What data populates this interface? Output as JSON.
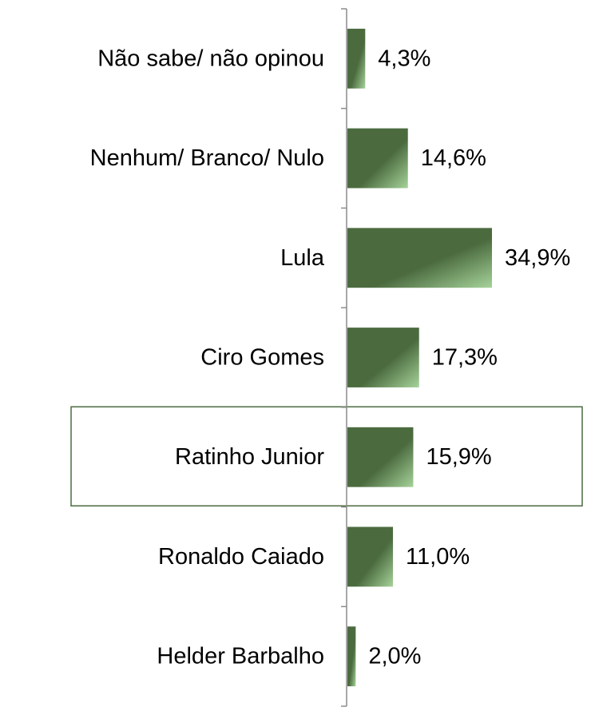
{
  "chart_data": {
    "type": "bar",
    "orientation": "horizontal",
    "title": "",
    "xlabel": "",
    "ylabel": "",
    "categories": [
      "Não sabe/ não opinou",
      "Nenhum/ Branco/ Nulo",
      "Lula",
      "Ciro Gomes",
      "Ratinho Junior",
      "Ronaldo Caiado",
      "Helder Barbalho"
    ],
    "values": [
      4.3,
      14.6,
      34.9,
      17.3,
      15.9,
      11.0,
      2.0
    ],
    "value_labels": [
      "4,3%",
      "14,6%",
      "34,9%",
      "17,3%",
      "15,9%",
      "11,0%",
      "2,0%"
    ],
    "xlim": [
      0,
      34.9
    ],
    "highlighted_category": "Ratinho Junior",
    "grid": false,
    "legend": "none",
    "colors": {
      "bar_dark": "#4b6b3f",
      "bar_light": "#a6d39a",
      "axis": "#8c8c8c",
      "highlight_border": "#4b6b3f",
      "text": "#000000"
    }
  }
}
